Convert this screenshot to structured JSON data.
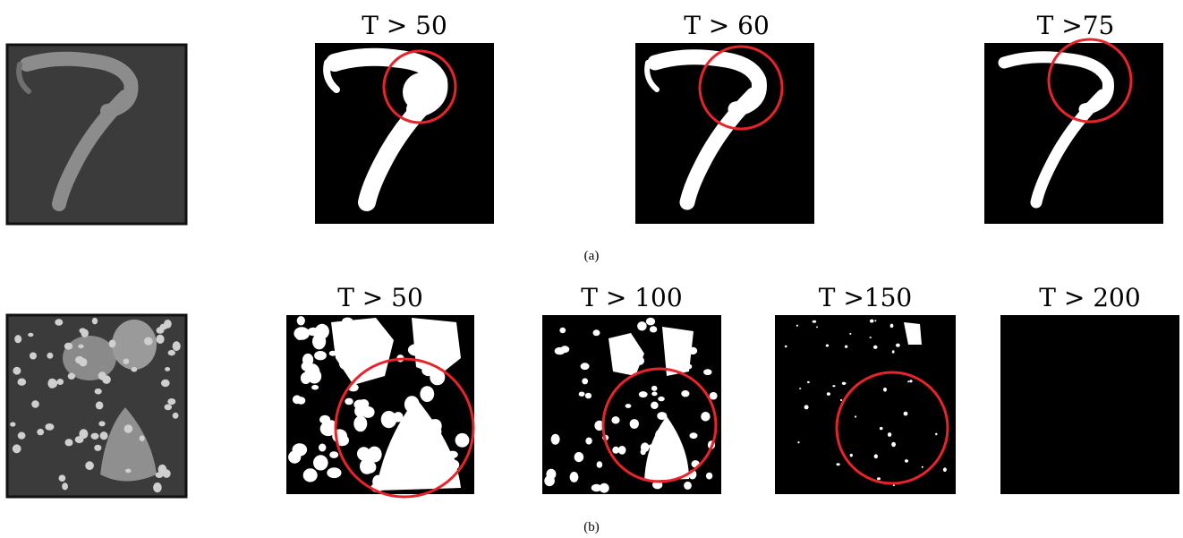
{
  "row_a": {
    "titles": [
      "T > 50",
      "T > 60",
      "T >75"
    ],
    "caption": "(a)"
  },
  "row_b": {
    "titles": [
      "T > 50",
      "T > 100",
      "T >150",
      "T > 200"
    ],
    "caption": "(b)"
  }
}
